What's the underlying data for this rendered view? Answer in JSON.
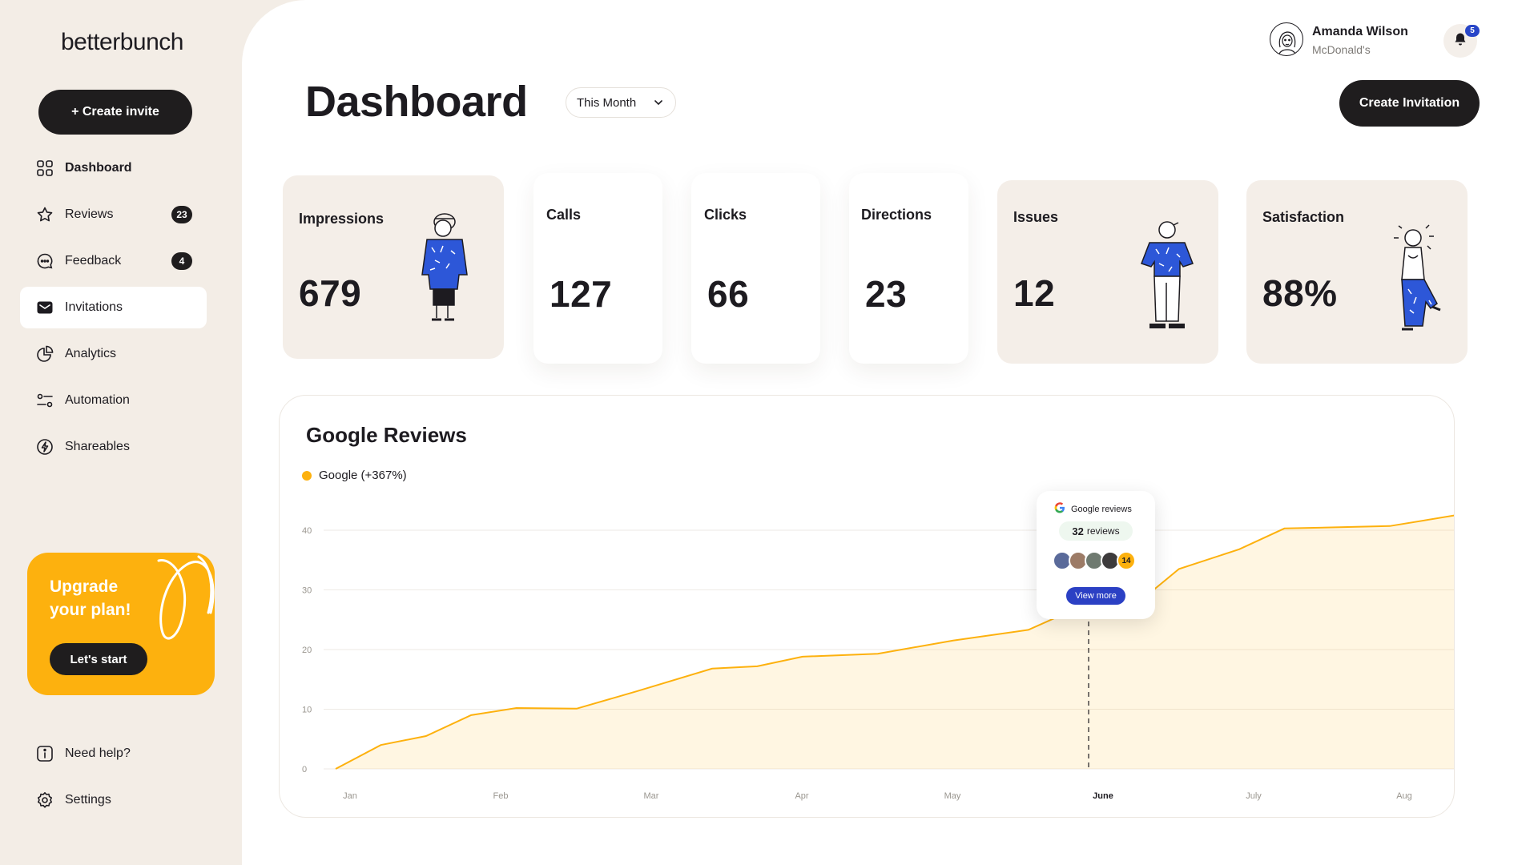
{
  "brand": {
    "logo": "betterbunch"
  },
  "sidebar": {
    "create_invite": "+ Create invite",
    "items": [
      {
        "label": "Dashboard",
        "icon": "grid-icon"
      },
      {
        "label": "Reviews",
        "icon": "star-icon",
        "badge": "23"
      },
      {
        "label": "Feedback",
        "icon": "chat-bubble-icon",
        "badge": "4"
      },
      {
        "label": "Invitations",
        "icon": "envelope-icon",
        "active": true
      },
      {
        "label": "Analytics",
        "icon": "pie-chart-icon"
      },
      {
        "label": "Automation",
        "icon": "sliders-icon"
      },
      {
        "label": "Shareables",
        "icon": "lightning-icon"
      }
    ],
    "upgrade": {
      "title": "Upgrade your plan!",
      "button": "Let's start"
    },
    "bottom": [
      {
        "label": "Need help?",
        "icon": "info-icon"
      },
      {
        "label": "Settings",
        "icon": "gear-icon"
      }
    ]
  },
  "header": {
    "title": "Dashboard",
    "period": "This Month",
    "create_invitation": "Create Invitation",
    "user": {
      "name": "Amanda Wilson",
      "company": "McDonald's"
    },
    "notifications": "5"
  },
  "stats": [
    {
      "label": "Impressions",
      "value": "679"
    },
    {
      "label": "Calls",
      "value": "127"
    },
    {
      "label": "Clicks",
      "value": "66"
    },
    {
      "label": "Directions",
      "value": "23"
    },
    {
      "label": "Issues",
      "value": "12"
    },
    {
      "label": "Satisfaction",
      "value": "88%"
    }
  ],
  "colors": {
    "accent": "#fdb10e",
    "dark": "#1f1d1e",
    "blue": "#2b40c4",
    "beige": "#f4eee8"
  },
  "chart_data": {
    "type": "area",
    "title": "Google Reviews",
    "series": [
      {
        "name": "Google (+367%)",
        "color": "#fdb10e"
      }
    ],
    "x": [
      "Jan",
      "Feb",
      "Mar",
      "Apr",
      "May",
      "June",
      "July",
      "Aug"
    ],
    "y_ticks": [
      "0",
      "10",
      "20",
      "30",
      "40"
    ],
    "ylim": [
      0,
      40
    ],
    "points": [
      [
        0.0,
        0
      ],
      [
        0.3,
        4
      ],
      [
        0.6,
        5.5
      ],
      [
        0.9,
        9
      ],
      [
        1.2,
        10.2
      ],
      [
        1.6,
        10.1
      ],
      [
        2.0,
        13
      ],
      [
        2.5,
        16.8
      ],
      [
        2.8,
        17.2
      ],
      [
        3.1,
        18.8
      ],
      [
        3.6,
        19.3
      ],
      [
        4.1,
        21.5
      ],
      [
        4.6,
        23.3
      ],
      [
        5.0,
        27.8
      ],
      [
        5.35,
        28.3
      ],
      [
        5.6,
        33.5
      ],
      [
        6.0,
        36.8
      ],
      [
        6.3,
        40.3
      ],
      [
        7.0,
        40.7
      ],
      [
        8.4,
        46.5
      ]
    ],
    "highlight": {
      "x": "June",
      "title": "Google reviews",
      "value": "32",
      "unit": "reviews",
      "more": "14",
      "button": "View more"
    }
  }
}
